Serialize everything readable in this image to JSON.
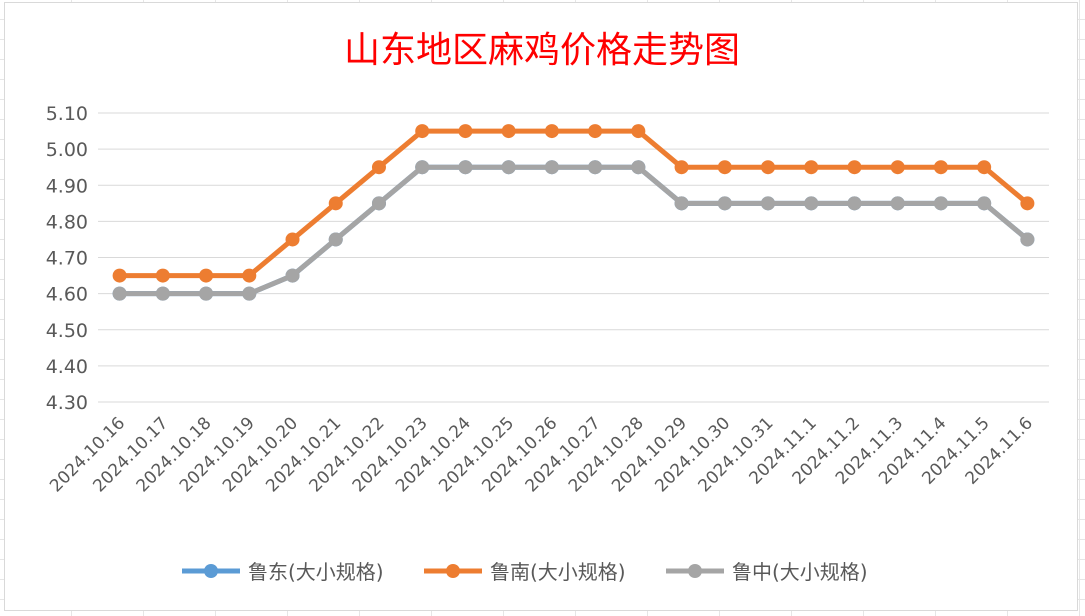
{
  "chart_data": {
    "type": "line",
    "title": "山东地区麻鸡价格走势图",
    "xlabel": "",
    "ylabel": "",
    "ylim": [
      4.3,
      5.1
    ],
    "y_ticks": [
      "5.10",
      "5.00",
      "4.90",
      "4.80",
      "4.70",
      "4.60",
      "4.50",
      "4.40",
      "4.30"
    ],
    "y_tick_values": [
      5.1,
      5.0,
      4.9,
      4.8,
      4.7,
      4.6,
      4.5,
      4.4,
      4.3
    ],
    "grid": true,
    "legend_position": "bottom",
    "categories": [
      "2024.10.16",
      "2024.10.17",
      "2024.10.18",
      "2024.10.19",
      "2024.10.20",
      "2024.10.21",
      "2024.10.22",
      "2024.10.23",
      "2024.10.24",
      "2024.10.25",
      "2024.10.26",
      "2024.10.27",
      "2024.10.28",
      "2024.10.29",
      "2024.10.30",
      "2024.10.31",
      "2024.11.1",
      "2024.11.2",
      "2024.11.3",
      "2024.11.4",
      "2024.11.5",
      "2024.11.6"
    ],
    "series": [
      {
        "name": "鲁东(大小规格)",
        "color": "#5b9bd5",
        "values": [
          4.6,
          4.6,
          4.6,
          4.6,
          4.65,
          4.75,
          4.85,
          4.95,
          4.95,
          4.95,
          4.95,
          4.95,
          4.95,
          4.85,
          4.85,
          4.85,
          4.85,
          4.85,
          4.85,
          4.85,
          4.85,
          4.75
        ]
      },
      {
        "name": "鲁南(大小规格)",
        "color": "#ed7d31",
        "values": [
          4.65,
          4.65,
          4.65,
          4.65,
          4.75,
          4.85,
          4.95,
          5.05,
          5.05,
          5.05,
          5.05,
          5.05,
          5.05,
          4.95,
          4.95,
          4.95,
          4.95,
          4.95,
          4.95,
          4.95,
          4.95,
          4.85
        ]
      },
      {
        "name": "鲁中(大小规格)",
        "color": "#a5a5a5",
        "values": [
          4.6,
          4.6,
          4.6,
          4.6,
          4.65,
          4.75,
          4.85,
          4.95,
          4.95,
          4.95,
          4.95,
          4.95,
          4.95,
          4.85,
          4.85,
          4.85,
          4.85,
          4.85,
          4.85,
          4.85,
          4.85,
          4.75
        ]
      }
    ]
  }
}
